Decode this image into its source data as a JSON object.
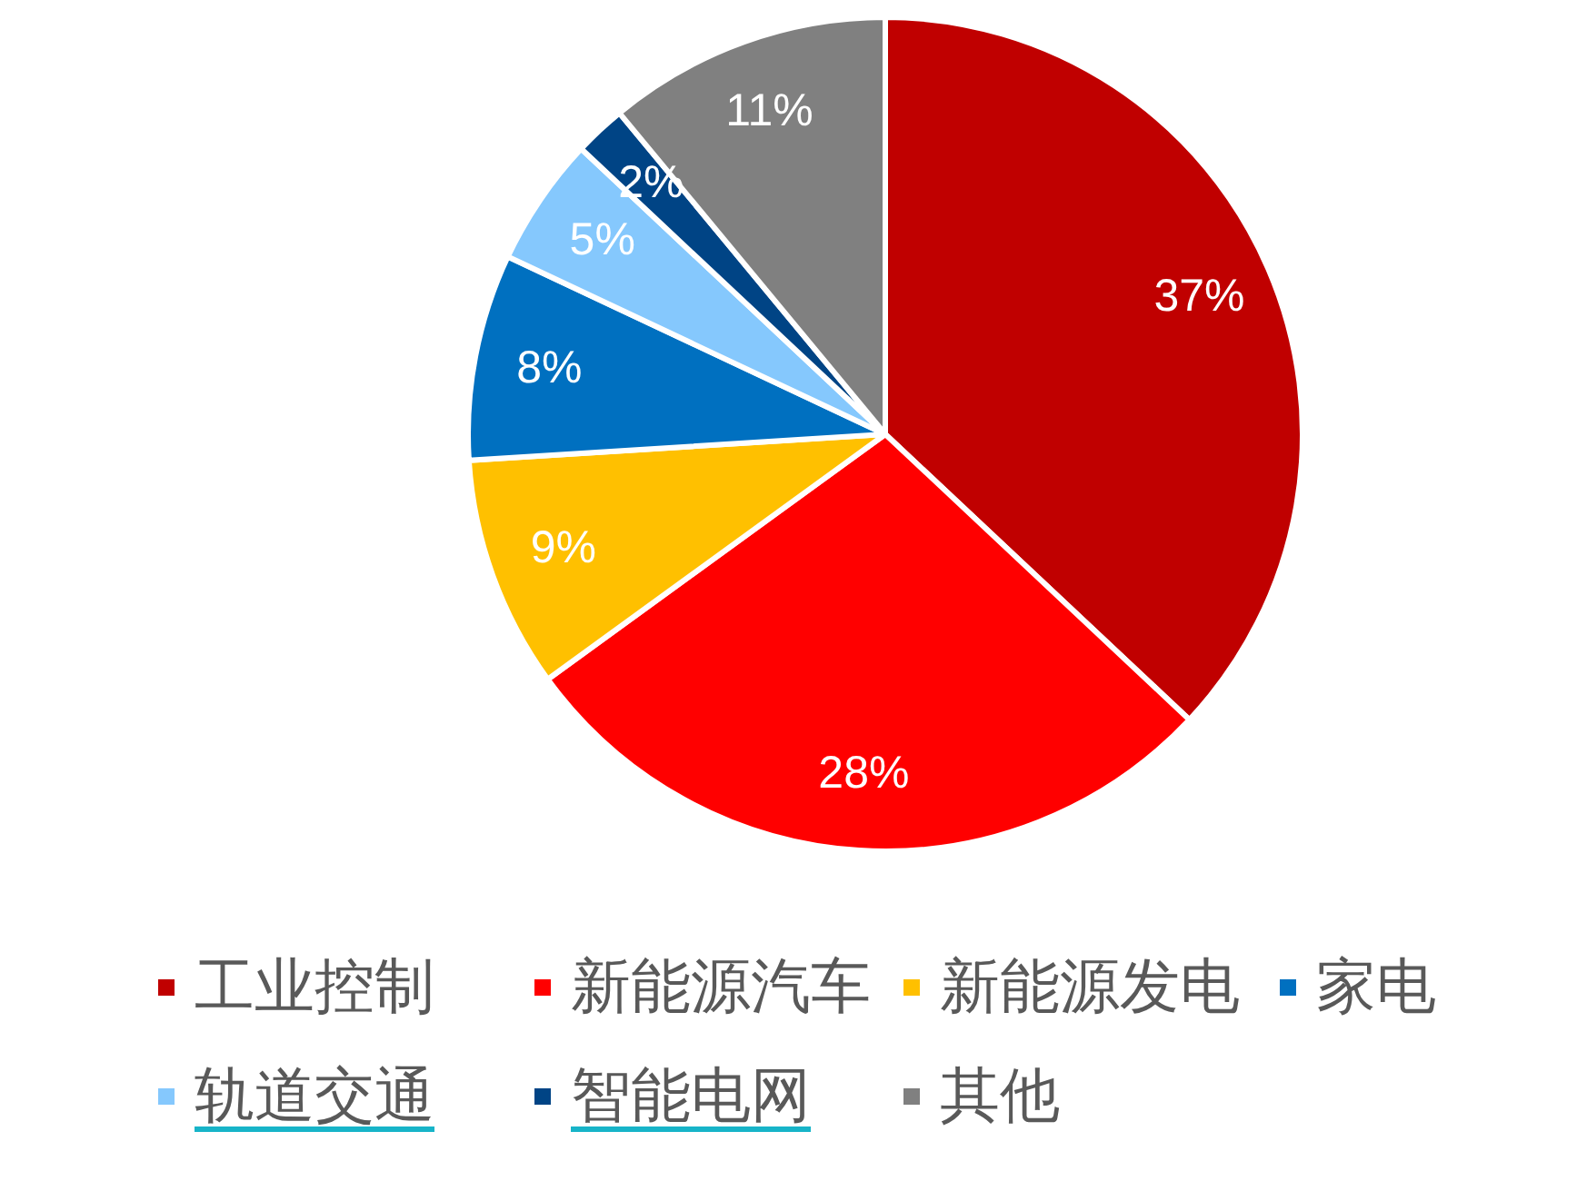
{
  "chart_data": {
    "type": "pie",
    "categories": [
      "工业控制",
      "新能源汽车",
      "新能源发电",
      "家电",
      "轨道交通",
      "智能电网",
      "其他"
    ],
    "values": [
      37,
      28,
      9,
      8,
      5,
      2,
      11
    ],
    "colors": [
      "#c00000",
      "#ff0000",
      "#ffc000",
      "#0070c0",
      "#85c8fd",
      "#004485",
      "#808080"
    ],
    "value_labels": [
      "37%",
      "28%",
      "9%",
      "8%",
      "5%",
      "2%",
      "11%"
    ],
    "legend": "bottom"
  }
}
